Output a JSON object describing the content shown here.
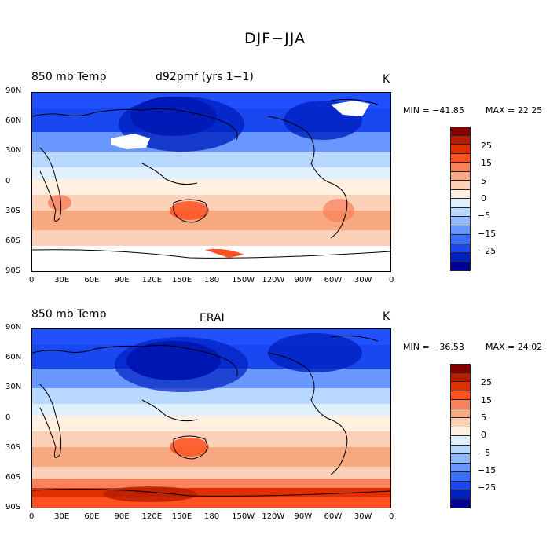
{
  "title": "DJF−JJA",
  "panels": [
    {
      "var_label": "850 mb Temp",
      "case_label": "d92pmf (yrs 1−1)",
      "units": "K",
      "min_label": "MIN = −41.85",
      "max_label": "MAX =  22.25"
    },
    {
      "var_label": "850 mb Temp",
      "case_label": "ERAI",
      "units": "K",
      "min_label": "MIN = −36.53",
      "max_label": "MAX =  24.02"
    }
  ],
  "lat_ticks": [
    "90N",
    "60N",
    "30N",
    "0",
    "30S",
    "60S",
    "90S"
  ],
  "lon_ticks": [
    "0",
    "30E",
    "60E",
    "90E",
    "120E",
    "150E",
    "180",
    "150W",
    "120W",
    "90W",
    "60W",
    "30W",
    "0"
  ],
  "colorbar": {
    "labels": [
      "25",
      "15",
      "5",
      "0",
      "−5",
      "−15",
      "−25"
    ],
    "colors": [
      "#800000",
      "#b81c00",
      "#e03000",
      "#ff5020",
      "#f8805a",
      "#f8a880",
      "#fdd0b8",
      "#fff0e0",
      "#e0f0ff",
      "#b8d8ff",
      "#90b8ff",
      "#6898ff",
      "#3c70ff",
      "#1a48f0",
      "#0020c0",
      "#000090"
    ]
  }
}
